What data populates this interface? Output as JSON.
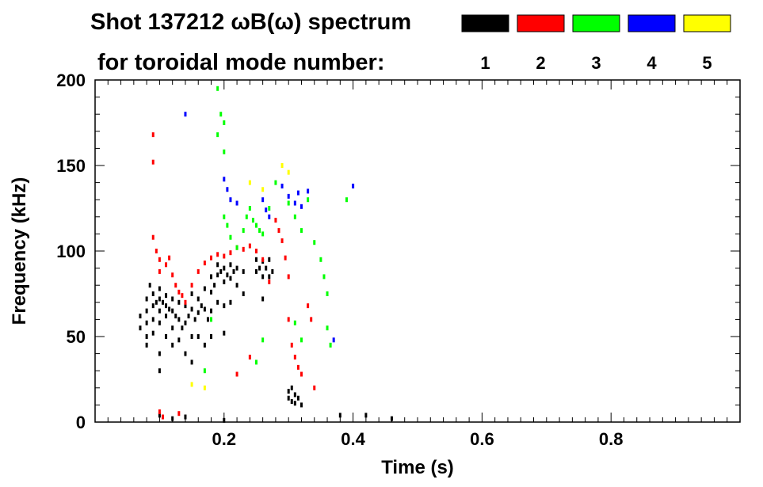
{
  "chart_data": {
    "type": "scatter",
    "title_line1": "Shot 137212 ωB(ω) spectrum",
    "title_line2": "for toroidal mode number:",
    "xlabel": "Time (s)",
    "ylabel": "Frequency (kHz)",
    "xlim": [
      0.0,
      1.0
    ],
    "ylim": [
      0,
      200
    ],
    "x_ticks": [
      0.2,
      0.4,
      0.6,
      0.8
    ],
    "x_tick_labels": [
      "0.2",
      "0.4",
      "0.6",
      "0.8"
    ],
    "y_ticks": [
      0,
      50,
      100,
      150,
      200
    ],
    "y_tick_labels": [
      "0",
      "50",
      "100",
      "150",
      "200"
    ],
    "grid": false,
    "legend_position": "top-right",
    "legend": [
      {
        "label": "1",
        "color": "#000000"
      },
      {
        "label": "2",
        "color": "#ff0000"
      },
      {
        "label": "3",
        "color": "#00ff00"
      },
      {
        "label": "4",
        "color": "#0000ff"
      },
      {
        "label": "5",
        "color": "#ffff00"
      }
    ],
    "series": [
      {
        "name": "1",
        "color": "#000000",
        "points": [
          [
            0.07,
            62
          ],
          [
            0.07,
            55
          ],
          [
            0.08,
            72
          ],
          [
            0.08,
            65
          ],
          [
            0.08,
            58
          ],
          [
            0.08,
            50
          ],
          [
            0.08,
            45
          ],
          [
            0.085,
            80
          ],
          [
            0.09,
            75
          ],
          [
            0.09,
            68
          ],
          [
            0.09,
            60
          ],
          [
            0.09,
            52
          ],
          [
            0.095,
            70
          ],
          [
            0.1,
            78
          ],
          [
            0.1,
            72
          ],
          [
            0.1,
            65
          ],
          [
            0.1,
            58
          ],
          [
            0.1,
            40
          ],
          [
            0.1,
            30
          ],
          [
            0.105,
            70
          ],
          [
            0.11,
            74
          ],
          [
            0.11,
            68
          ],
          [
            0.11,
            62
          ],
          [
            0.11,
            50
          ],
          [
            0.115,
            66
          ],
          [
            0.12,
            72
          ],
          [
            0.12,
            65
          ],
          [
            0.12,
            55
          ],
          [
            0.12,
            45
          ],
          [
            0.125,
            62
          ],
          [
            0.13,
            70
          ],
          [
            0.13,
            60
          ],
          [
            0.13,
            48
          ],
          [
            0.135,
            55
          ],
          [
            0.14,
            68
          ],
          [
            0.14,
            58
          ],
          [
            0.14,
            40
          ],
          [
            0.145,
            62
          ],
          [
            0.15,
            75
          ],
          [
            0.15,
            66
          ],
          [
            0.15,
            50
          ],
          [
            0.15,
            35
          ],
          [
            0.155,
            60
          ],
          [
            0.16,
            72
          ],
          [
            0.16,
            64
          ],
          [
            0.16,
            50
          ],
          [
            0.165,
            68
          ],
          [
            0.17,
            78
          ],
          [
            0.17,
            66
          ],
          [
            0.17,
            45
          ],
          [
            0.175,
            60
          ],
          [
            0.18,
            85
          ],
          [
            0.18,
            76
          ],
          [
            0.18,
            65
          ],
          [
            0.18,
            50
          ],
          [
            0.185,
            80
          ],
          [
            0.19,
            92
          ],
          [
            0.19,
            86
          ],
          [
            0.19,
            70
          ],
          [
            0.195,
            88
          ],
          [
            0.2,
            90
          ],
          [
            0.2,
            82
          ],
          [
            0.2,
            68
          ],
          [
            0.2,
            52
          ],
          [
            0.205,
            86
          ],
          [
            0.21,
            92
          ],
          [
            0.21,
            84
          ],
          [
            0.21,
            70
          ],
          [
            0.215,
            88
          ],
          [
            0.22,
            90
          ],
          [
            0.22,
            80
          ],
          [
            0.23,
            88
          ],
          [
            0.23,
            75
          ],
          [
            0.25,
            95
          ],
          [
            0.25,
            88
          ],
          [
            0.255,
            90
          ],
          [
            0.26,
            94
          ],
          [
            0.26,
            85
          ],
          [
            0.26,
            72
          ],
          [
            0.265,
            90
          ],
          [
            0.27,
            95
          ],
          [
            0.27,
            85
          ],
          [
            0.275,
            88
          ],
          [
            0.3,
            18
          ],
          [
            0.3,
            14
          ],
          [
            0.305,
            20
          ],
          [
            0.305,
            12
          ],
          [
            0.31,
            16
          ],
          [
            0.31,
            11
          ],
          [
            0.315,
            14
          ],
          [
            0.32,
            10
          ],
          [
            0.1,
            4
          ],
          [
            0.12,
            2
          ],
          [
            0.14,
            3
          ],
          [
            0.2,
            1
          ],
          [
            0.38,
            4
          ],
          [
            0.42,
            4
          ],
          [
            0.46,
            2
          ]
        ]
      },
      {
        "name": "2",
        "color": "#ff0000",
        "points": [
          [
            0.09,
            168
          ],
          [
            0.09,
            152
          ],
          [
            0.09,
            108
          ],
          [
            0.095,
            100
          ],
          [
            0.1,
            95
          ],
          [
            0.1,
            88
          ],
          [
            0.11,
            92
          ],
          [
            0.115,
            96
          ],
          [
            0.12,
            86
          ],
          [
            0.125,
            80
          ],
          [
            0.13,
            76
          ],
          [
            0.135,
            74
          ],
          [
            0.14,
            70
          ],
          [
            0.15,
            80
          ],
          [
            0.16,
            88
          ],
          [
            0.17,
            93
          ],
          [
            0.18,
            96
          ],
          [
            0.19,
            98
          ],
          [
            0.2,
            97
          ],
          [
            0.21,
            99
          ],
          [
            0.22,
            102
          ],
          [
            0.23,
            101
          ],
          [
            0.24,
            103
          ],
          [
            0.25,
            100
          ],
          [
            0.26,
            95
          ],
          [
            0.27,
            82
          ],
          [
            0.28,
            118
          ],
          [
            0.285,
            112
          ],
          [
            0.29,
            106
          ],
          [
            0.295,
            96
          ],
          [
            0.3,
            85
          ],
          [
            0.3,
            60
          ],
          [
            0.305,
            45
          ],
          [
            0.31,
            38
          ],
          [
            0.315,
            32
          ],
          [
            0.32,
            28
          ],
          [
            0.33,
            68
          ],
          [
            0.335,
            60
          ],
          [
            0.34,
            20
          ],
          [
            0.1,
            6
          ],
          [
            0.105,
            3
          ],
          [
            0.13,
            5
          ],
          [
            0.22,
            28
          ],
          [
            0.24,
            38
          ]
        ]
      },
      {
        "name": "3",
        "color": "#00ff00",
        "points": [
          [
            0.19,
            195
          ],
          [
            0.19,
            168
          ],
          [
            0.195,
            180
          ],
          [
            0.2,
            175
          ],
          [
            0.2,
            158
          ],
          [
            0.2,
            120
          ],
          [
            0.205,
            115
          ],
          [
            0.21,
            108
          ],
          [
            0.22,
            102
          ],
          [
            0.23,
            112
          ],
          [
            0.235,
            120
          ],
          [
            0.24,
            125
          ],
          [
            0.245,
            118
          ],
          [
            0.25,
            115
          ],
          [
            0.255,
            112
          ],
          [
            0.26,
            110
          ],
          [
            0.27,
            125
          ],
          [
            0.28,
            140
          ],
          [
            0.3,
            128
          ],
          [
            0.31,
            120
          ],
          [
            0.32,
            112
          ],
          [
            0.33,
            130
          ],
          [
            0.34,
            105
          ],
          [
            0.35,
            95
          ],
          [
            0.355,
            85
          ],
          [
            0.36,
            75
          ],
          [
            0.36,
            55
          ],
          [
            0.365,
            45
          ],
          [
            0.31,
            58
          ],
          [
            0.32,
            48
          ],
          [
            0.17,
            30
          ],
          [
            0.18,
            60
          ],
          [
            0.25,
            35
          ],
          [
            0.26,
            48
          ],
          [
            0.39,
            130
          ]
        ]
      },
      {
        "name": "4",
        "color": "#0000ff",
        "points": [
          [
            0.14,
            180
          ],
          [
            0.2,
            142
          ],
          [
            0.205,
            136
          ],
          [
            0.21,
            130
          ],
          [
            0.22,
            128
          ],
          [
            0.26,
            130
          ],
          [
            0.265,
            124
          ],
          [
            0.27,
            120
          ],
          [
            0.29,
            138
          ],
          [
            0.3,
            132
          ],
          [
            0.31,
            128
          ],
          [
            0.315,
            134
          ],
          [
            0.32,
            126
          ],
          [
            0.33,
            135
          ],
          [
            0.37,
            48
          ],
          [
            0.4,
            138
          ]
        ]
      },
      {
        "name": "5",
        "color": "#ffff00",
        "points": [
          [
            0.24,
            140
          ],
          [
            0.26,
            136
          ],
          [
            0.29,
            150
          ],
          [
            0.3,
            146
          ],
          [
            0.15,
            22
          ],
          [
            0.17,
            20
          ]
        ]
      }
    ]
  }
}
